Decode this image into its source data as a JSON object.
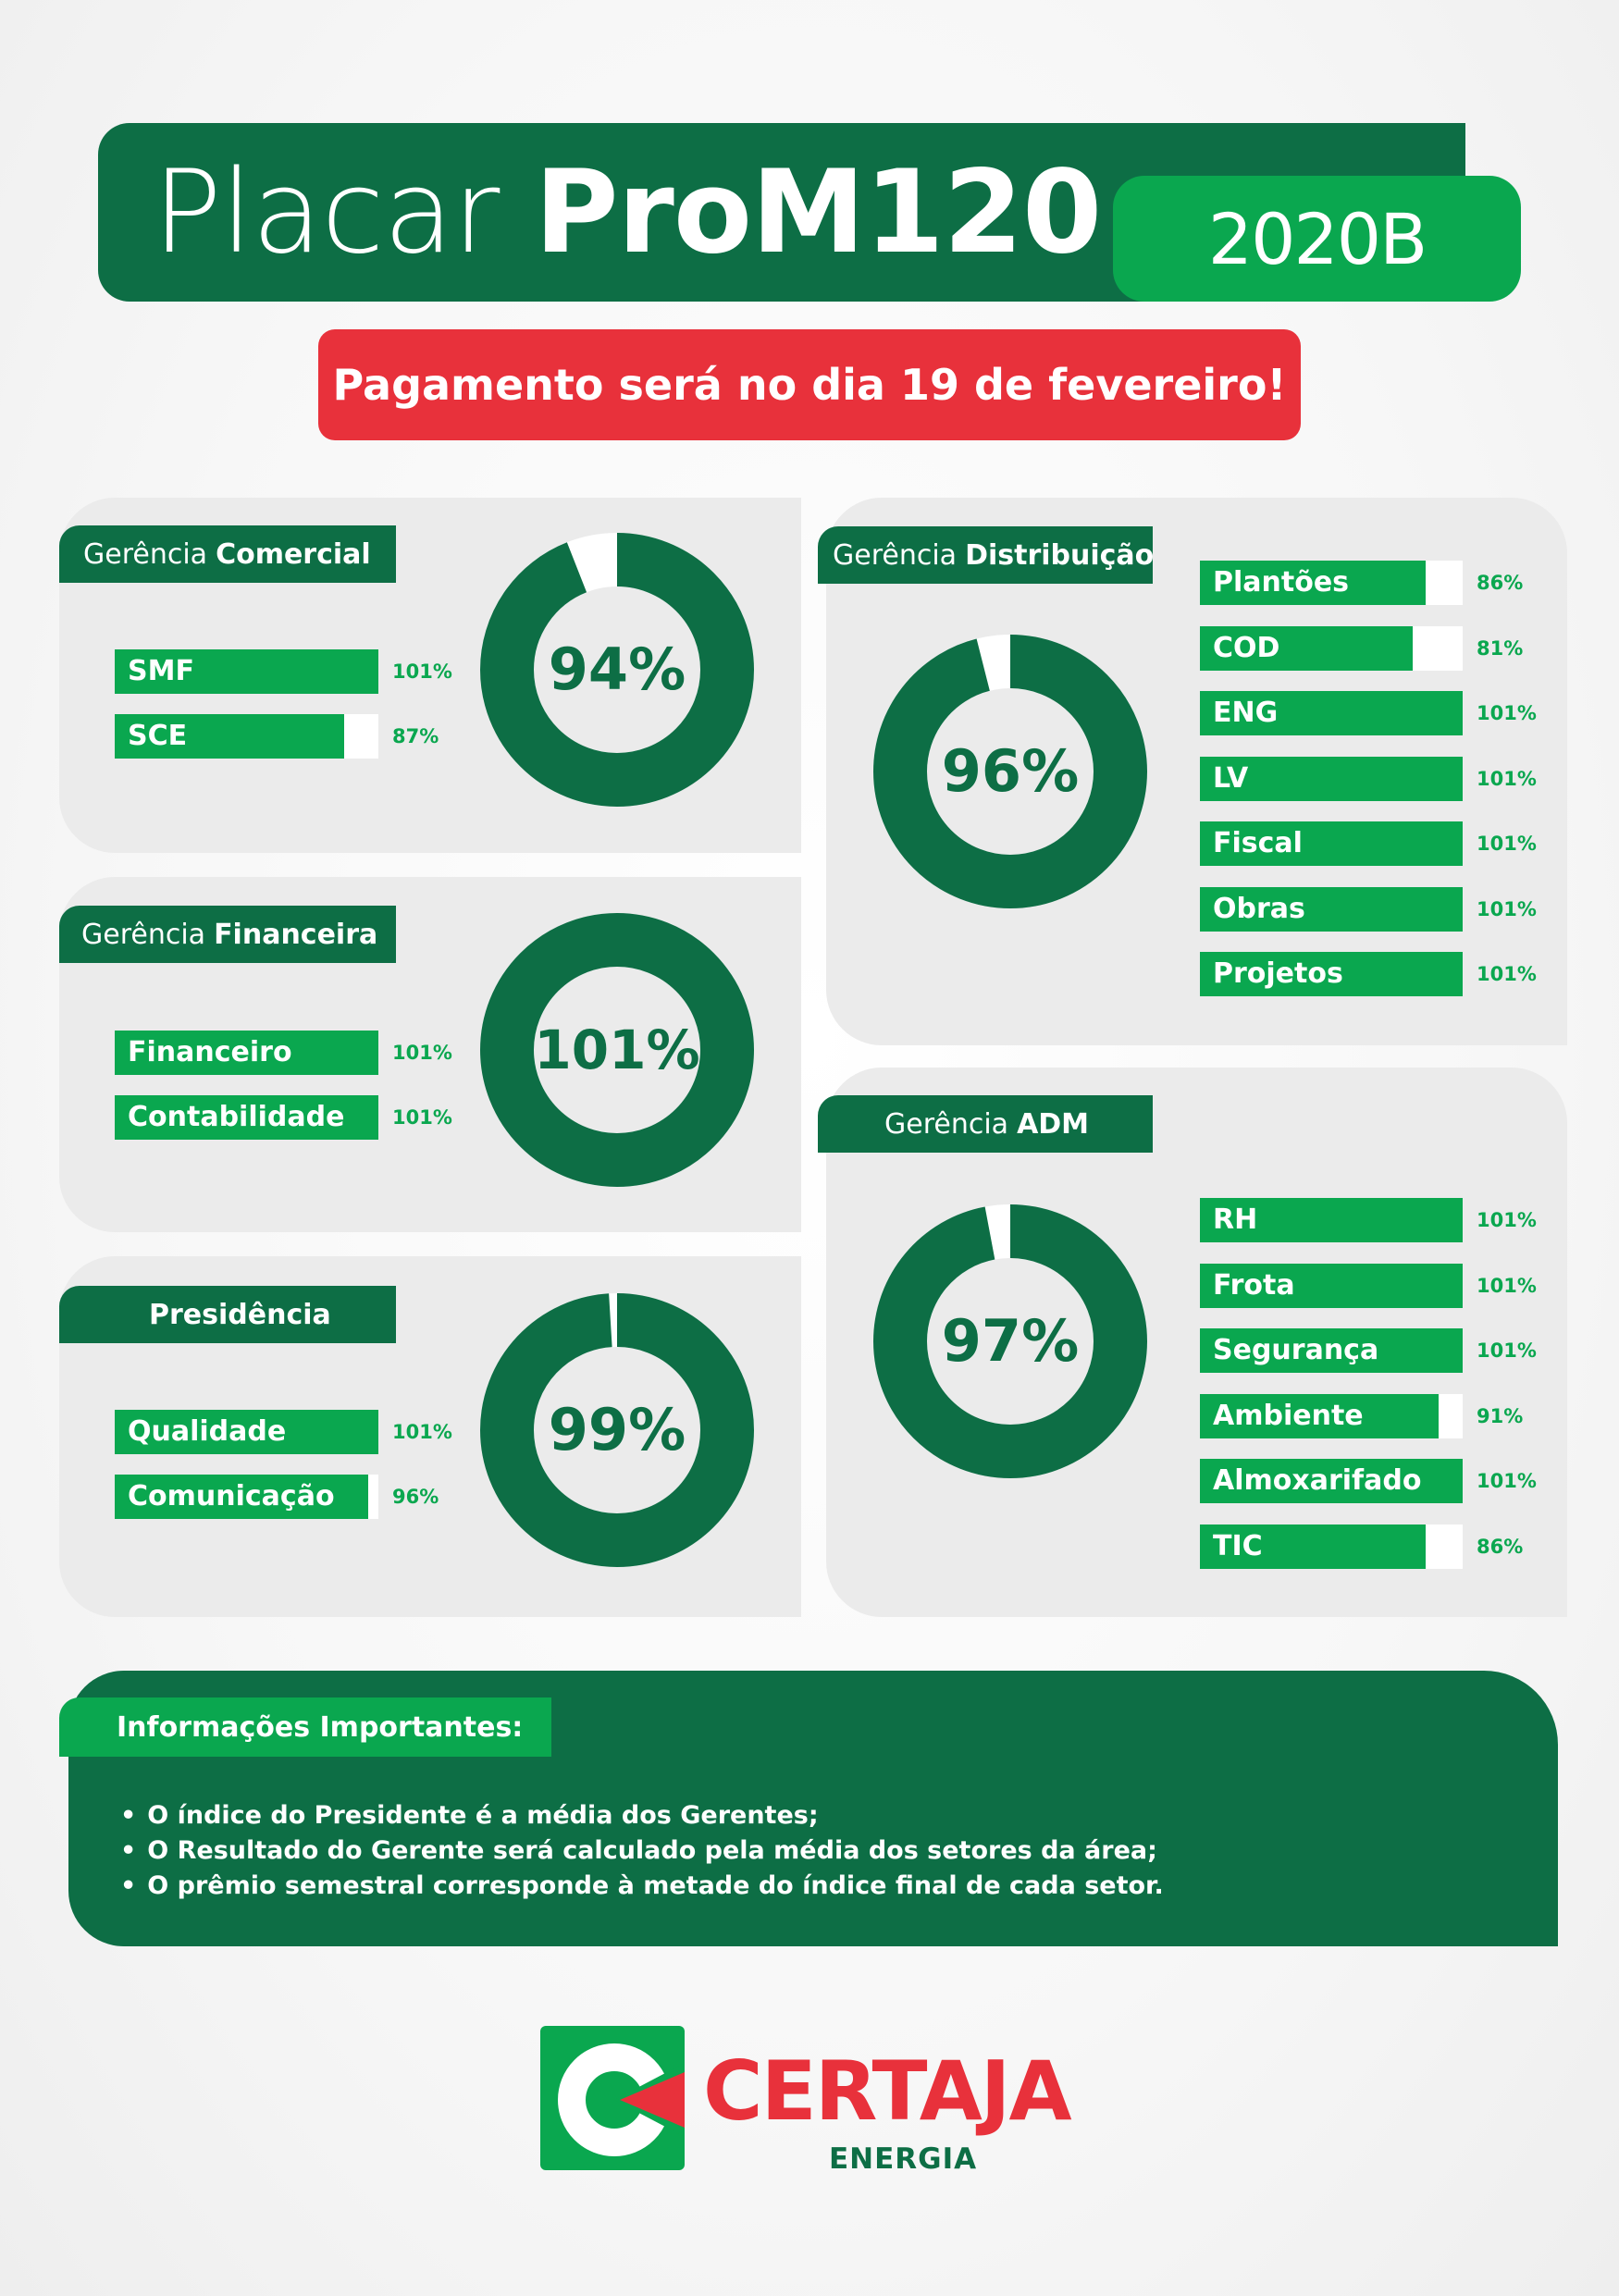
{
  "header": {
    "title_light": "Placar",
    "title_bold": "ProM120",
    "year": "2020B",
    "payment_notice": "Pagamento será no dia 19 de fevereiro!"
  },
  "colors": {
    "dark_green": "#0d6e45",
    "green": "#0aa74f",
    "red": "#e8313b",
    "card_bg": "#ebebeb"
  },
  "cards": {
    "comercial": {
      "label_prefix": "Gerência",
      "label_bold": "Comercial",
      "total": "94%",
      "total_value": 94,
      "sectors": [
        {
          "name": "SMF",
          "pct": "101%",
          "value": 101
        },
        {
          "name": "SCE",
          "pct": "87%",
          "value": 87
        }
      ]
    },
    "financeira": {
      "label_prefix": "Gerência",
      "label_bold": "Financeira",
      "total": "101%",
      "total_value": 101,
      "sectors": [
        {
          "name": "Financeiro",
          "pct": "101%",
          "value": 101
        },
        {
          "name": "Contabilidade",
          "pct": "101%",
          "value": 101
        }
      ]
    },
    "presidencia": {
      "label_prefix": "",
      "label_bold": "Presidência",
      "total": "99%",
      "total_value": 99,
      "sectors": [
        {
          "name": "Qualidade",
          "pct": "101%",
          "value": 101
        },
        {
          "name": "Comunicação",
          "pct": "96%",
          "value": 96
        }
      ]
    },
    "distribuicao": {
      "label_prefix": "Gerência",
      "label_bold": "Distribuição",
      "total": "96%",
      "total_value": 96,
      "sectors": [
        {
          "name": "Plantões",
          "pct": "86%",
          "value": 86
        },
        {
          "name": "COD",
          "pct": "81%",
          "value": 81
        },
        {
          "name": "ENG",
          "pct": "101%",
          "value": 101
        },
        {
          "name": "LV",
          "pct": "101%",
          "value": 101
        },
        {
          "name": "Fiscal",
          "pct": "101%",
          "value": 101
        },
        {
          "name": "Obras",
          "pct": "101%",
          "value": 101
        },
        {
          "name": "Projetos",
          "pct": "101%",
          "value": 101
        }
      ]
    },
    "adm": {
      "label_prefix": "Gerência",
      "label_bold": "ADM",
      "total": "97%",
      "total_value": 97,
      "sectors": [
        {
          "name": "RH",
          "pct": "101%",
          "value": 101
        },
        {
          "name": "Frota",
          "pct": "101%",
          "value": 101
        },
        {
          "name": "Segurança",
          "pct": "101%",
          "value": 101
        },
        {
          "name": "Ambiente",
          "pct": "91%",
          "value": 91
        },
        {
          "name": "Almoxarifado",
          "pct": "101%",
          "value": 101
        },
        {
          "name": "TIC",
          "pct": "86%",
          "value": 86
        }
      ]
    }
  },
  "info": {
    "title": "Informações Importantes:",
    "items": [
      "O índice do Presidente é a média dos Gerentes;",
      "O Resultado do Gerente será calculado pela média dos setores da área;",
      "O prêmio semestral corresponde à metade do índice final de cada setor."
    ]
  },
  "logo": {
    "name": "CERTAJA",
    "sub": "ENERGIA"
  }
}
